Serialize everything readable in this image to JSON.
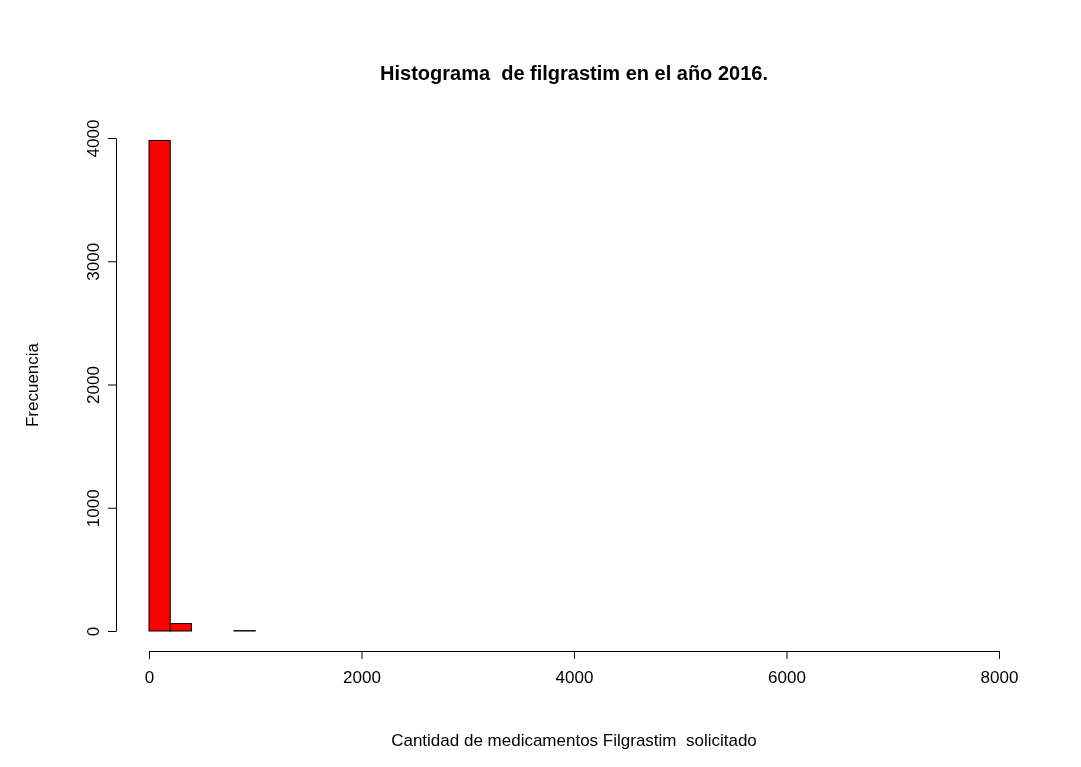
{
  "chart_data": {
    "type": "histogram",
    "title": "Histograma  de filgrastim en el año 2016.",
    "xlabel": "Cantidad de medicamentos Filgrastim  solicitado",
    "ylabel": "Frecuencia",
    "bins": [
      0,
      200,
      400,
      600,
      800,
      1000,
      1200,
      1400,
      1600,
      1800,
      2000,
      2200,
      2400,
      2600,
      2800,
      3000,
      3200,
      3400,
      3600,
      3800,
      4000,
      4200,
      4400,
      4600,
      4800,
      5000,
      5200,
      5400,
      5600,
      5800,
      6000,
      6200,
      6400,
      6600,
      6800,
      7000,
      7200,
      7400,
      7600,
      7800,
      8000
    ],
    "values": [
      3980,
      60,
      0,
      0,
      3,
      0,
      0,
      0,
      0,
      0,
      0,
      0,
      0,
      0,
      0,
      0,
      0,
      0,
      0,
      0,
      0,
      0,
      0,
      0,
      0,
      0,
      0,
      0,
      0,
      0,
      0,
      0,
      0,
      0,
      0,
      0,
      0,
      0,
      0,
      0
    ],
    "color": "#ff0000",
    "xlim": [
      0,
      8000
    ],
    "xticks": [
      0,
      2000,
      4000,
      6000,
      8000
    ],
    "ylim": [
      0,
      4000
    ],
    "yticks": [
      0,
      1000,
      2000,
      3000,
      4000
    ],
    "grid": false
  }
}
